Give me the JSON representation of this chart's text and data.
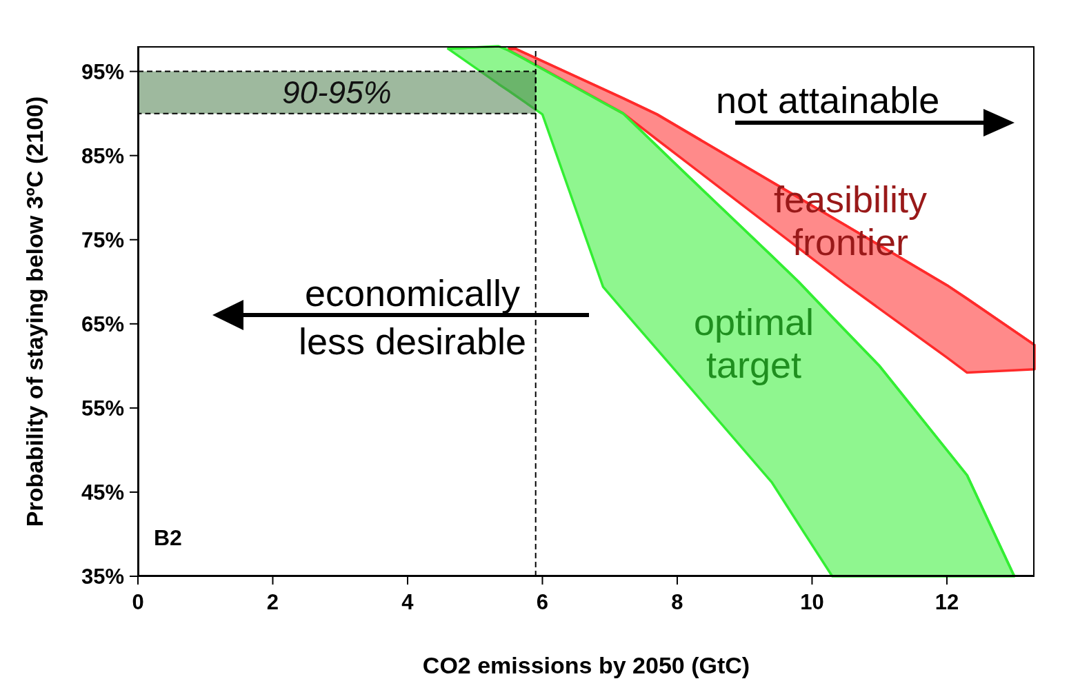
{
  "chart_data": {
    "type": "line",
    "xlabel": "CO2 emissions by 2050 (GtC)",
    "ylabel": "Probability of staying below 3ºC (2100)",
    "xlim": [
      0,
      13.3
    ],
    "ylim": [
      35,
      98
    ],
    "xticks": [
      0,
      2,
      4,
      6,
      8,
      10,
      12
    ],
    "yticks": [
      {
        "value": 35,
        "label": "35%"
      },
      {
        "value": 45,
        "label": "45%"
      },
      {
        "value": 55,
        "label": "55%"
      },
      {
        "value": 65,
        "label": "65%"
      },
      {
        "value": 75,
        "label": "75%"
      },
      {
        "value": 85,
        "label": "85%"
      },
      {
        "value": 95,
        "label": "95%"
      }
    ],
    "series": [
      {
        "name": "optimal target",
        "color": "#33ee33",
        "x": [
          4.6,
          5.35,
          5.5,
          6.0,
          6.9,
          7.2,
          8.0,
          9.4,
          9.8,
          10.3,
          11.0,
          12.3,
          13.0
        ],
        "values": [
          97.7,
          98,
          97.5,
          95.3,
          91.3,
          90,
          83.8,
          73.1,
          70,
          65.8,
          60,
          47,
          35
        ],
        "upper": [
          97.7,
          98,
          97.5,
          95.3,
          91.3,
          90,
          83.8,
          73.1,
          70,
          65.8,
          60,
          47,
          35
        ],
        "lower": [
          97.7,
          93.5,
          92.7,
          89.9,
          69.4,
          66.6,
          59.2,
          46.2,
          41.2,
          35,
          35,
          35,
          35
        ]
      },
      {
        "name": "feasibility frontier",
        "color": "#ff2a2a",
        "x": [
          5.5,
          5.6,
          7.2,
          7.7,
          10.5,
          12.0,
          12.3,
          13.3
        ],
        "values": [
          97.7,
          97.7,
          91.8,
          89.9,
          76.7,
          69.6,
          68.0,
          62.5
        ],
        "upper": [
          97.7,
          97.7,
          91.8,
          89.9,
          76.7,
          69.6,
          68.0,
          62.5
        ],
        "lower": [
          97.5,
          97.1,
          90,
          86.9,
          69.7,
          61.0,
          59.2,
          59.6
        ]
      }
    ],
    "bands": [
      {
        "axis": "y",
        "from": 90,
        "to": 95,
        "label": "90-95%",
        "color": "#4f7f4f"
      }
    ],
    "ref_lines": [
      {
        "axis": "x",
        "value": 5.9,
        "line_style": "dashed"
      }
    ],
    "annotations": [
      "not attainable",
      "economically less desirable",
      "B2"
    ]
  }
}
